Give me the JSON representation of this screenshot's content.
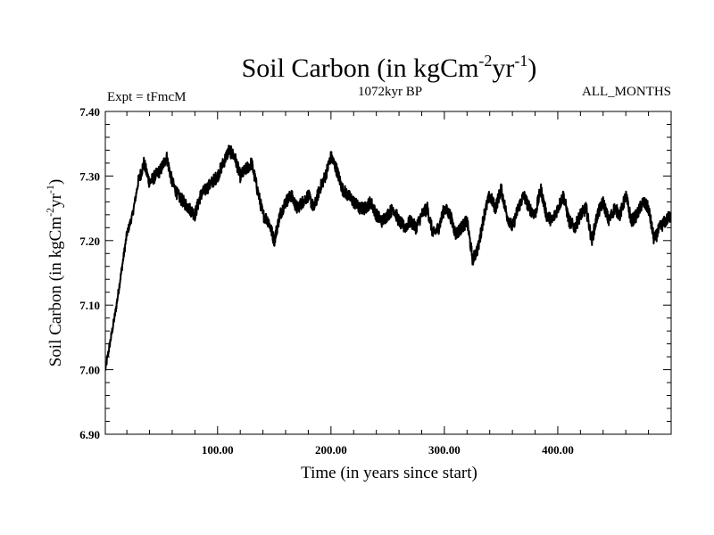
{
  "chart_data": {
    "type": "line",
    "title": "Soil Carbon (in kgCm",
    "title_sup1": "-2",
    "title_mid": "yr",
    "title_sup2": "-1",
    "title_end": ")",
    "left_annotation": "Expt = tFmcM",
    "center_annotation": "1072kyr BP",
    "right_annotation": "ALL_MONTHS",
    "xlabel": "Time (in years since start)",
    "ylabel": "Soil Carbon (in kgCm",
    "ylabel_sup1": "-2",
    "ylabel_mid": "yr",
    "ylabel_sup2": "-1",
    "ylabel_end": ")",
    "xlim": [
      1,
      500
    ],
    "ylim": [
      6.9,
      7.4
    ],
    "x_ticks": [
      100,
      200,
      300,
      400
    ],
    "x_tick_labels": [
      "100.00",
      "200.00",
      "300.00",
      "400.00"
    ],
    "y_ticks": [
      6.9,
      7.0,
      7.1,
      7.2,
      7.3,
      7.4
    ],
    "y_tick_labels": [
      "6.90",
      "7.00",
      "7.10",
      "7.20",
      "7.30",
      "7.40"
    ],
    "series": [
      {
        "name": "Soil Carbon",
        "x": [
          1,
          5,
          10,
          15,
          20,
          25,
          30,
          35,
          40,
          45,
          50,
          55,
          60,
          65,
          70,
          75,
          80,
          85,
          90,
          95,
          100,
          105,
          110,
          115,
          120,
          125,
          130,
          135,
          140,
          145,
          150,
          155,
          160,
          165,
          170,
          175,
          180,
          185,
          190,
          195,
          200,
          205,
          210,
          215,
          220,
          225,
          230,
          235,
          240,
          245,
          250,
          255,
          260,
          265,
          270,
          275,
          280,
          285,
          290,
          295,
          300,
          305,
          310,
          315,
          320,
          325,
          330,
          335,
          340,
          345,
          350,
          355,
          360,
          365,
          370,
          375,
          380,
          385,
          390,
          395,
          400,
          405,
          410,
          415,
          420,
          425,
          430,
          435,
          440,
          445,
          450,
          455,
          460,
          465,
          470,
          475,
          480,
          485,
          490,
          495,
          500
        ],
        "values": [
          7.0,
          7.04,
          7.09,
          7.15,
          7.21,
          7.24,
          7.29,
          7.32,
          7.29,
          7.3,
          7.31,
          7.33,
          7.29,
          7.27,
          7.26,
          7.25,
          7.24,
          7.27,
          7.28,
          7.29,
          7.3,
          7.32,
          7.34,
          7.33,
          7.3,
          7.31,
          7.32,
          7.28,
          7.24,
          7.23,
          7.2,
          7.24,
          7.26,
          7.27,
          7.25,
          7.26,
          7.27,
          7.25,
          7.28,
          7.3,
          7.33,
          7.31,
          7.28,
          7.27,
          7.26,
          7.25,
          7.25,
          7.26,
          7.24,
          7.23,
          7.24,
          7.25,
          7.23,
          7.22,
          7.23,
          7.22,
          7.24,
          7.25,
          7.21,
          7.22,
          7.25,
          7.24,
          7.21,
          7.22,
          7.23,
          7.17,
          7.19,
          7.24,
          7.27,
          7.25,
          7.28,
          7.24,
          7.22,
          7.25,
          7.27,
          7.25,
          7.24,
          7.28,
          7.24,
          7.23,
          7.25,
          7.27,
          7.23,
          7.22,
          7.24,
          7.25,
          7.2,
          7.24,
          7.26,
          7.23,
          7.25,
          7.24,
          7.27,
          7.23,
          7.24,
          7.26,
          7.25,
          7.2,
          7.22,
          7.23,
          7.24
        ]
      }
    ]
  }
}
